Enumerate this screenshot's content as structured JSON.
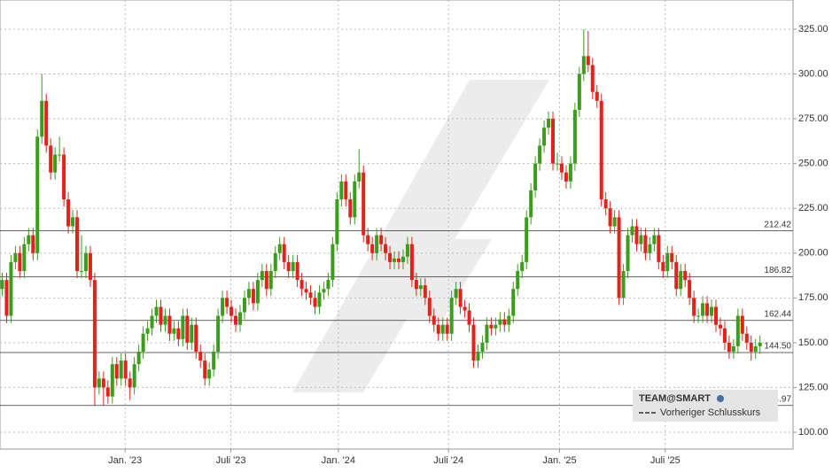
{
  "chart_data": {
    "type": "candlestick",
    "xlim": [
      0,
      180
    ],
    "xticks": [
      {
        "value": 28.4,
        "label": "Jan. '23"
      },
      {
        "value": 52.4,
        "label": "Juli '23"
      },
      {
        "value": 76.8,
        "label": "Jan. '24"
      },
      {
        "value": 101.8,
        "label": "Juli '24"
      },
      {
        "value": 127,
        "label": "Jan. '25"
      },
      {
        "value": 151,
        "label": "Juli '25"
      }
    ],
    "ylim": [
      90.6,
      341.3
    ],
    "yticks": [
      {
        "value": 100,
        "label": "100.00"
      },
      {
        "value": 125,
        "label": "125.00"
      },
      {
        "value": 150,
        "label": "150.00"
      },
      {
        "value": 175,
        "label": "175.00"
      },
      {
        "value": 200,
        "label": "200.00"
      },
      {
        "value": 225,
        "label": "225.00"
      },
      {
        "value": 250,
        "label": "250.00"
      },
      {
        "value": 275,
        "label": "275.00"
      },
      {
        "value": 300,
        "label": "300.00"
      },
      {
        "value": 325,
        "label": "325.00"
      }
    ],
    "grid": true,
    "up_color": "#3c9c1c",
    "down_color": "#e0231c",
    "levels": [
      212.42,
      186.82,
      162.44,
      {
        "value": 144.5,
        "label": "144.50"
      },
      114.97
    ],
    "legend": {
      "title": "TEAM@SMART",
      "entries": [
        "Vorheriger Schlusskurs"
      ]
    },
    "open": [
      180,
      185,
      165,
      195,
      200,
      190,
      205,
      210,
      200,
      265,
      285,
      260,
      245,
      255,
      255,
      230,
      215,
      220,
      190,
      190,
      200,
      185,
      125,
      130,
      125,
      120,
      138,
      130,
      140,
      130,
      125,
      138,
      145,
      155,
      158,
      165,
      170,
      160,
      165,
      155,
      158,
      152,
      165,
      150,
      160,
      145,
      140,
      130,
      135,
      145,
      165,
      175,
      170,
      165,
      160,
      167,
      175,
      180,
      172,
      185,
      190,
      180,
      190,
      200,
      205,
      195,
      190,
      195,
      185,
      180,
      178,
      175,
      170,
      178,
      180,
      185,
      205,
      230,
      240,
      230,
      220,
      240,
      245,
      210,
      205,
      200,
      210,
      205,
      200,
      195,
      197,
      195,
      198,
      205,
      185,
      180,
      182,
      175,
      165,
      160,
      155,
      160,
      155,
      175,
      180,
      170,
      168,
      160,
      140,
      145,
      150,
      160,
      158,
      160,
      163,
      160,
      165,
      180,
      190,
      195,
      220,
      235,
      250,
      260,
      270,
      275,
      250,
      250,
      245,
      240,
      250,
      280,
      300,
      310,
      305,
      290,
      285,
      230,
      225,
      215,
      220,
      175,
      190,
      210,
      215,
      205,
      210,
      200,
      205,
      210,
      195,
      190,
      200,
      195,
      180,
      190,
      185,
      175,
      165,
      165,
      172,
      165,
      170,
      160,
      158,
      150,
      145,
      148,
      165,
      155,
      150,
      145,
      148
    ],
    "high": [
      189,
      189,
      199,
      204,
      204,
      209,
      214,
      214,
      269,
      300,
      289,
      264,
      259,
      265,
      259,
      234,
      224,
      224,
      210,
      204,
      204,
      189,
      134,
      134,
      129,
      142,
      142,
      144,
      144,
      134,
      142,
      149,
      159,
      162,
      169,
      174,
      174,
      169,
      169,
      162,
      162,
      169,
      169,
      164,
      164,
      149,
      144,
      139,
      149,
      169,
      179,
      179,
      174,
      169,
      171,
      179,
      184,
      184,
      189,
      194,
      194,
      194,
      204,
      209,
      209,
      199,
      199,
      199,
      189,
      184,
      182,
      179,
      182,
      184,
      189,
      209,
      234,
      244,
      244,
      234,
      244,
      258,
      249,
      214,
      209,
      214,
      214,
      209,
      204,
      201,
      201,
      202,
      209,
      209,
      189,
      186,
      186,
      179,
      169,
      164,
      164,
      164,
      179,
      184,
      184,
      174,
      172,
      164,
      149,
      154,
      164,
      164,
      164,
      167,
      167,
      169,
      184,
      194,
      199,
      224,
      239,
      254,
      264,
      274,
      279,
      279,
      256,
      254,
      249,
      254,
      284,
      304,
      325,
      324,
      309,
      294,
      289,
      234,
      229,
      224,
      224,
      194,
      214,
      219,
      219,
      214,
      214,
      209,
      214,
      214,
      199,
      204,
      204,
      199,
      194,
      194,
      189,
      179,
      169,
      176,
      176,
      174,
      174,
      164,
      162,
      154,
      152,
      169,
      169,
      159,
      154,
      152,
      154
    ],
    "low": [
      176,
      161,
      161,
      191,
      186,
      186,
      201,
      196,
      196,
      261,
      256,
      241,
      241,
      251,
      226,
      211,
      211,
      186,
      186,
      186,
      181,
      115,
      121,
      115,
      116,
      116,
      126,
      126,
      126,
      118,
      121,
      134,
      141,
      151,
      154,
      161,
      156,
      156,
      151,
      151,
      148,
      148,
      146,
      146,
      141,
      136,
      126,
      126,
      131,
      141,
      161,
      166,
      161,
      156,
      156,
      163,
      171,
      168,
      168,
      181,
      176,
      176,
      186,
      196,
      191,
      186,
      186,
      181,
      176,
      174,
      171,
      166,
      166,
      174,
      176,
      181,
      201,
      226,
      226,
      216,
      216,
      236,
      206,
      201,
      196,
      196,
      201,
      196,
      191,
      191,
      191,
      191,
      194,
      181,
      176,
      176,
      171,
      161,
      156,
      151,
      151,
      151,
      151,
      171,
      166,
      164,
      156,
      136,
      136,
      141,
      146,
      154,
      154,
      156,
      156,
      156,
      161,
      176,
      186,
      191,
      216,
      231,
      246,
      256,
      266,
      246,
      246,
      241,
      236,
      236,
      246,
      276,
      296,
      301,
      286,
      281,
      226,
      221,
      211,
      211,
      171,
      171,
      186,
      206,
      201,
      201,
      196,
      196,
      201,
      191,
      186,
      186,
      191,
      176,
      176,
      181,
      171,
      161,
      161,
      161,
      161,
      161,
      156,
      154,
      146,
      141,
      141,
      144,
      151,
      146,
      140,
      141,
      144
    ],
    "close": [
      185,
      165,
      195,
      200,
      190,
      205,
      210,
      200,
      265,
      285,
      260,
      245,
      255,
      255,
      230,
      215,
      220,
      190,
      190,
      200,
      185,
      125,
      130,
      125,
      120,
      138,
      130,
      140,
      130,
      125,
      138,
      145,
      155,
      158,
      165,
      170,
      160,
      165,
      155,
      158,
      152,
      165,
      150,
      160,
      145,
      140,
      130,
      135,
      145,
      165,
      175,
      170,
      165,
      160,
      167,
      175,
      180,
      172,
      185,
      190,
      180,
      190,
      200,
      205,
      195,
      190,
      195,
      185,
      180,
      178,
      175,
      170,
      178,
      180,
      185,
      205,
      230,
      240,
      230,
      220,
      240,
      245,
      210,
      205,
      200,
      210,
      205,
      200,
      195,
      197,
      195,
      198,
      205,
      185,
      180,
      182,
      175,
      165,
      160,
      155,
      160,
      155,
      175,
      180,
      170,
      168,
      160,
      140,
      145,
      150,
      160,
      158,
      160,
      163,
      160,
      165,
      180,
      190,
      195,
      220,
      235,
      250,
      260,
      270,
      275,
      250,
      250,
      245,
      240,
      250,
      280,
      300,
      310,
      305,
      290,
      285,
      230,
      225,
      215,
      220,
      175,
      190,
      210,
      215,
      205,
      210,
      200,
      205,
      210,
      195,
      190,
      200,
      195,
      180,
      190,
      185,
      175,
      165,
      165,
      172,
      165,
      170,
      160,
      158,
      150,
      145,
      148,
      165,
      155,
      150,
      145,
      148,
      150
    ]
  }
}
